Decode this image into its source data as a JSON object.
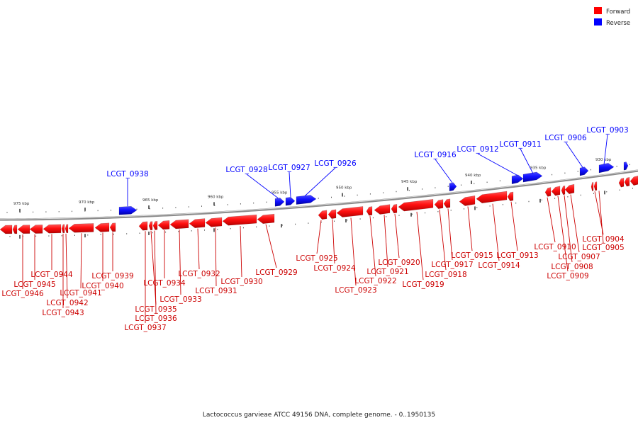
{
  "legend": {
    "forward_label": "Forward",
    "reverse_label": "Reverse",
    "forward_color": "#ff0000",
    "reverse_color": "#0000ff"
  },
  "caption": "Lactococcus garvieae ATCC 49156 DNA, complete genome. - 0..1950135",
  "ticks": [
    "975 kbp",
    "970 kbp",
    "965 kbp",
    "960 kbp",
    "955 kbp",
    "950 kbp",
    "945 kbp",
    "940 kbp",
    "935 kbp",
    "930 kbp"
  ],
  "reverse_genes": [
    "LCGT_0938",
    "LCGT_0928",
    "LCGT_0927",
    "LCGT_0926",
    "LCGT_0916",
    "LCGT_0912",
    "LCGT_0911",
    "LCGT_0906",
    "LCGT_0903"
  ],
  "forward_genes": [
    "LCGT_0944",
    "LCGT_0945",
    "LCGT_0946",
    "LCGT_0941",
    "LCGT_0942",
    "LCGT_0943",
    "LCGT_0939",
    "LCGT_0940",
    "LCGT_0934",
    "LCGT_0935",
    "LCGT_0936",
    "LCGT_0937",
    "LCGT_0933",
    "LCGT_0932",
    "LCGT_0931",
    "LCGT_0930",
    "LCGT_0929",
    "LCGT_0925",
    "LCGT_0924",
    "LCGT_0923",
    "LCGT_0922",
    "LCGT_0921",
    "LCGT_0920",
    "LCGT_0919",
    "LCGT_0918",
    "LCGT_0917",
    "LCGT_0915",
    "LCGT_0914",
    "LCGT_0913",
    "LCGT_0910",
    "LCGT_0909",
    "LCGT_0908",
    "LCGT_0907",
    "LCGT_0905",
    "LCGT_0904"
  ]
}
